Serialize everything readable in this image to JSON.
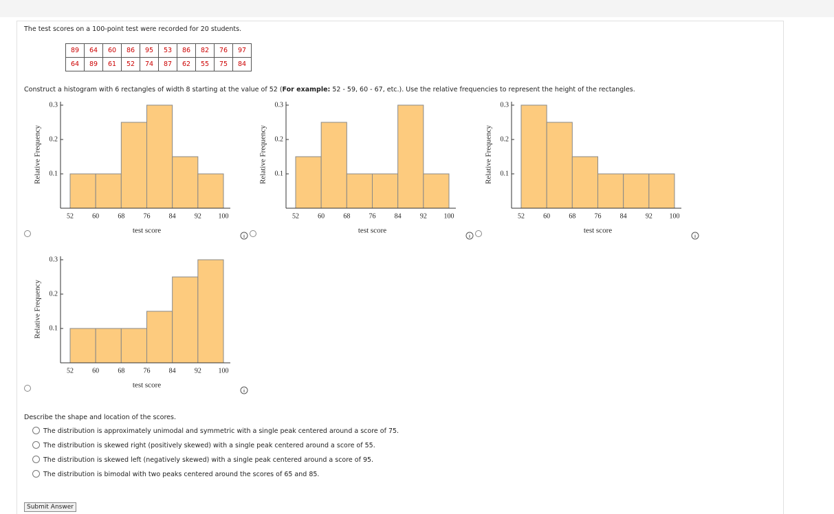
{
  "intro": "The test scores on a 100-point test were recorded for 20 students.",
  "table": {
    "rows": [
      [
        89,
        64,
        60,
        86,
        95,
        53,
        86,
        82,
        76,
        97
      ],
      [
        64,
        89,
        61,
        52,
        74,
        87,
        62,
        55,
        75,
        84
      ]
    ]
  },
  "instruction": {
    "before": "Construct a histogram with 6 rectangles of width 8 starting at the value of 52 (",
    "bold": "For example:",
    "after": " 52 - 59, 60 - 67, etc.). Use the relative frequencies to represent the height of the rectangles."
  },
  "histograms": [
    {
      "type": "histogram",
      "xlabel": "test score",
      "ylabel": "Relative Frequency",
      "bins": [
        52,
        60,
        68,
        76,
        84,
        92,
        100
      ],
      "values": [
        0.1,
        0.1,
        0.25,
        0.3,
        0.15,
        0.1
      ],
      "ylim": [
        0,
        0.3
      ],
      "yticks": [
        0.1,
        0.2,
        0.3
      ],
      "color": "#fdcb7e"
    },
    {
      "type": "histogram",
      "xlabel": "test score",
      "ylabel": "Relative Frequency",
      "bins": [
        52,
        60,
        68,
        76,
        84,
        92,
        100
      ],
      "values": [
        0.15,
        0.25,
        0.1,
        0.1,
        0.3,
        0.1
      ],
      "ylim": [
        0,
        0.3
      ],
      "yticks": [
        0.1,
        0.2,
        0.3
      ],
      "color": "#fdcb7e"
    },
    {
      "type": "histogram",
      "xlabel": "test score",
      "ylabel": "Relative Frequency",
      "bins": [
        52,
        60,
        68,
        76,
        84,
        92,
        100
      ],
      "values": [
        0.3,
        0.25,
        0.15,
        0.1,
        0.1,
        0.1
      ],
      "ylim": [
        0,
        0.3
      ],
      "yticks": [
        0.1,
        0.2,
        0.3
      ],
      "color": "#fdcb7e"
    },
    {
      "type": "histogram",
      "xlabel": "test score",
      "ylabel": "Relative Frequency",
      "bins": [
        52,
        60,
        68,
        76,
        84,
        92,
        100
      ],
      "values": [
        0.1,
        0.1,
        0.1,
        0.15,
        0.25,
        0.3
      ],
      "ylim": [
        0,
        0.3
      ],
      "yticks": [
        0.1,
        0.2,
        0.3
      ],
      "color": "#fdcb7e"
    }
  ],
  "question": "Describe the shape and location of the scores.",
  "choices": [
    "The distribution is approximately unimodal and symmetric with a single peak centered around a score of 75.",
    "The distribution is skewed right (positively skewed) with a single peak centered around a score of 55.",
    "The distribution is skewed left (negatively skewed) with a single peak centered around a score of 95.",
    "The distribution is bimodal with two peaks centered around the scores of 65 and 85."
  ],
  "submit": "Submit Answer"
}
